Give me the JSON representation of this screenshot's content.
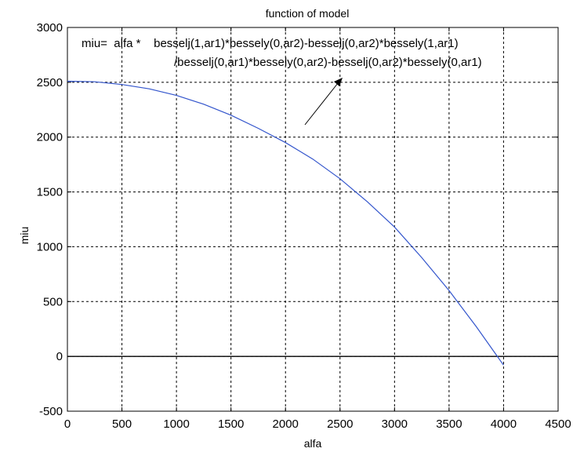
{
  "chart_data": {
    "type": "line",
    "title": "function of model",
    "xlabel": "alfa",
    "ylabel": "miu",
    "xlim": [
      0,
      4500
    ],
    "ylim": [
      -500,
      3000
    ],
    "xticks": [
      0,
      500,
      1000,
      1500,
      2000,
      2500,
      3000,
      3500,
      4000,
      4500
    ],
    "yticks": [
      -500,
      0,
      500,
      1000,
      1500,
      2000,
      2500,
      3000
    ],
    "grid": true,
    "series": [
      {
        "color": "#3355cc",
        "x": [
          0,
          250,
          500,
          750,
          1000,
          1250,
          1500,
          1750,
          2000,
          2250,
          2500,
          2750,
          3000,
          3250,
          3500,
          3750,
          4000
        ],
        "y": [
          2510,
          2505,
          2480,
          2440,
          2380,
          2300,
          2200,
          2080,
          1950,
          1800,
          1620,
          1410,
          1180,
          900,
          600,
          270,
          -80
        ]
      }
    ],
    "annotation": {
      "line1": "miu=  alfa *    besselj(1,ar1)*bessely(0,ar2)-besselj(0,ar2)*bessely(1,ar1)",
      "line2": "/besselj(0,ar1)*bessely(0,ar2)-besselj(0,ar2)*bessely(0,ar1)"
    }
  }
}
